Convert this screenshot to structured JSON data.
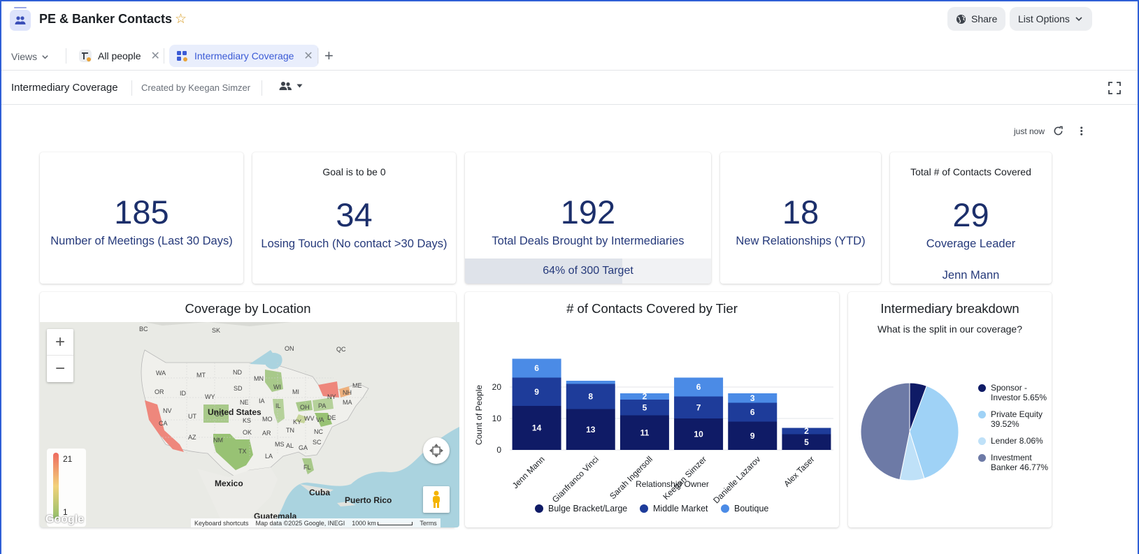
{
  "header": {
    "title": "PE & Banker Contacts",
    "share_label": "Share",
    "list_options_label": "List Options"
  },
  "tabs": {
    "views_label": "Views",
    "items": [
      {
        "label": "All people"
      },
      {
        "label": "Intermediary Coverage"
      }
    ]
  },
  "subheader": {
    "title": "Intermediary Coverage",
    "created_by": "Created by Keegan Simzer"
  },
  "dashboard": {
    "refreshed": "just now",
    "kpis": [
      {
        "value": "185",
        "label": "Number of Meetings (Last 30 Days)"
      },
      {
        "caption": "Goal is to be 0",
        "value": "34",
        "label": "Losing Touch (No contact >30 Days)"
      },
      {
        "value": "192",
        "label": "Total Deals Brought by Intermediaries",
        "progress_text": "64% of 300 Target",
        "progress_fraction": 0.64
      },
      {
        "value": "18",
        "label": "New Relationships (YTD)"
      },
      {
        "caption": "Total # of Contacts Covered",
        "value": "29",
        "label": "Coverage Leader",
        "footer": "Jenn Mann"
      }
    ],
    "map": {
      "title": "Coverage by Location",
      "legend_max": "21",
      "legend_min": "1",
      "labels": [
        "BC",
        "SK",
        "ON",
        "QC",
        "WA",
        "MT",
        "ND",
        "MN",
        "ME",
        "OR",
        "ID",
        "WY",
        "SD",
        "WI",
        "MI",
        "NY",
        "NH",
        "NV",
        "UT",
        "NE",
        "IA",
        "IL",
        "OH",
        "PA",
        "MA",
        "CA",
        "CO",
        "KS",
        "MO",
        "KY",
        "WV",
        "VA",
        "DE",
        "AZ",
        "NM",
        "OK",
        "AR",
        "TN",
        "NC",
        "TX",
        "LA",
        "MS",
        "AL",
        "GA",
        "SC",
        "FL",
        "United States",
        "Mexico",
        "Cuba",
        "Puerto Rico",
        "Guatemala"
      ],
      "footer": {
        "shortcuts": "Keyboard shortcuts",
        "data": "Map data ©2025 Google, INEGI",
        "scale": "1000 km",
        "terms": "Terms"
      },
      "brand": "Google"
    },
    "tier_chart": {
      "title": "# of Contacts Covered by Tier"
    },
    "pie_chart": {
      "title": "Intermediary breakdown",
      "subtitle": "What is the split in our coverage?"
    }
  },
  "chart_data": [
    {
      "type": "bar",
      "stacked": true,
      "title": "# of Contacts Covered by Tier",
      "xlabel": "Relationship Owner",
      "ylabel": "Count of People",
      "ylim": [
        0,
        30
      ],
      "yticks": [
        0,
        10,
        20
      ],
      "categories": [
        "Jenn Mann",
        "Gianfranco Vinci",
        "Sarah Ingersoll",
        "Keegan Simzer",
        "Danielle Lazarov",
        "Alex Taser"
      ],
      "series": [
        {
          "name": "Bulge Bracket/Large",
          "color": "#0f1b66",
          "values": [
            14,
            13,
            11,
            10,
            9,
            5
          ]
        },
        {
          "name": "Middle Market",
          "color": "#1e3c9a",
          "values": [
            9,
            8,
            5,
            7,
            6,
            2
          ]
        },
        {
          "name": "Boutique",
          "color": "#4b8be6",
          "values": [
            6,
            1,
            2,
            6,
            3,
            0
          ]
        }
      ],
      "legend": "bottom"
    },
    {
      "type": "pie",
      "title": "Intermediary breakdown",
      "subtitle": "What is the split in our coverage?",
      "slices": [
        {
          "label": "Sponsor - Investor",
          "value": 5.65,
          "pct": "5.65%",
          "color": "#0f1b66"
        },
        {
          "label": "Private Equity",
          "value": 39.52,
          "pct": "39.52%",
          "color": "#9fd2f6"
        },
        {
          "label": "Lender",
          "value": 8.06,
          "pct": "8.06%",
          "color": "#bfe1f8"
        },
        {
          "label": "Investment Banker",
          "value": 46.77,
          "pct": "46.77%",
          "color": "#6d7aa6"
        }
      ],
      "legend": "right"
    }
  ]
}
